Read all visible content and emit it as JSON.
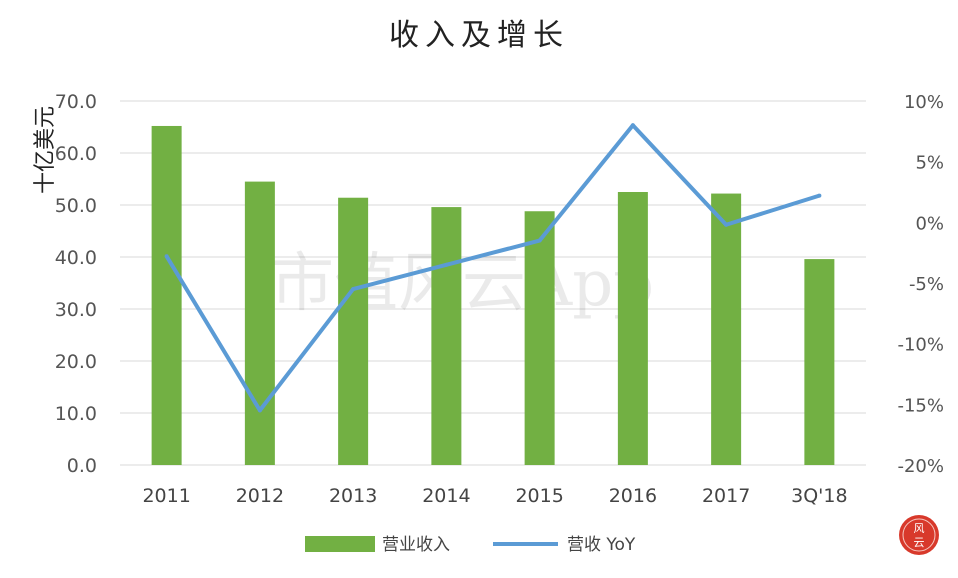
{
  "chart_data": {
    "type": "bar",
    "title": "收入及增长",
    "ylabel": "十亿美元",
    "categories": [
      "2011",
      "2012",
      "2013",
      "2014",
      "2015",
      "2016",
      "2017",
      "3Q'18"
    ],
    "ylim": [
      0,
      70
    ],
    "y_ticks": [
      "70.0",
      "60.0",
      "50.0",
      "40.0",
      "30.0",
      "20.0",
      "10.0",
      "0.0"
    ],
    "y2lim": [
      -20,
      10
    ],
    "y2_ticks": [
      "10%",
      "5%",
      "0%",
      "-5%",
      "-10%",
      "-15%",
      "-20%"
    ],
    "series": [
      {
        "name": "营业收入",
        "type": "bar",
        "axis": "left",
        "values": [
          65.2,
          54.5,
          51.4,
          49.6,
          48.8,
          52.5,
          52.2,
          39.6
        ]
      },
      {
        "name": "营收 YoY",
        "type": "line",
        "axis": "right",
        "values": [
          -2.8,
          -15.5,
          -5.5,
          -3.5,
          -1.5,
          8.0,
          -0.2,
          2.2
        ]
      }
    ],
    "grid": true,
    "legend_position": "bottom",
    "colors": {
      "bar": "#72b043",
      "line": "#5b9bd5",
      "grid": "#d9d9d9"
    }
  },
  "watermark": "市值风云App",
  "stamp_icon": "fengyun-seal-icon"
}
